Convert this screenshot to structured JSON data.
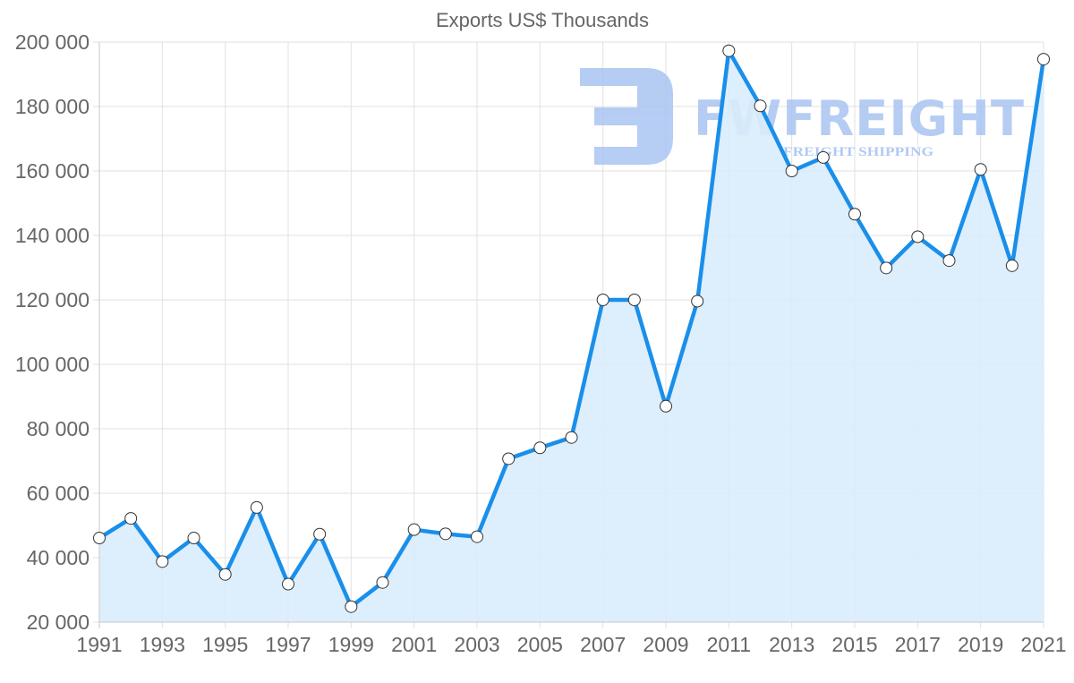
{
  "chart_data": {
    "type": "line",
    "title": "Exports US$ Thousands",
    "xlabel": "",
    "ylabel": "",
    "x": [
      1991,
      1992,
      1993,
      1994,
      1995,
      1996,
      1997,
      1998,
      1999,
      2000,
      2001,
      2002,
      2003,
      2004,
      2005,
      2006,
      2007,
      2008,
      2009,
      2010,
      2011,
      2012,
      2013,
      2014,
      2015,
      2016,
      2017,
      2018,
      2019,
      2020,
      2021
    ],
    "series": [
      {
        "name": "Exports US$ Thousands",
        "values": [
          46100,
          52200,
          38800,
          46100,
          34800,
          55600,
          31800,
          47300,
          24800,
          32300,
          48700,
          47400,
          46500,
          70700,
          74100,
          77300,
          120000,
          120000,
          87000,
          119600,
          197300,
          180200,
          160000,
          164200,
          146600,
          129900,
          139600,
          132200,
          160500,
          130600,
          194700
        ]
      }
    ],
    "xtick_labels": [
      "1991",
      "1993",
      "1995",
      "1997",
      "1999",
      "2001",
      "2003",
      "2005",
      "2007",
      "2009",
      "2011",
      "2013",
      "2015",
      "2017",
      "2019",
      "2021"
    ],
    "ytick_labels": [
      "20 000",
      "40 000",
      "60 000",
      "80 000",
      "100 000",
      "120 000",
      "140 000",
      "160 000",
      "180 000",
      "200 000"
    ],
    "ylim": [
      20000,
      200000
    ],
    "xlim": [
      1991,
      2021
    ],
    "grid": true,
    "legend": "none",
    "fill": "area",
    "colors": {
      "line": "#1a8fea",
      "fill": "#d9ecfc",
      "marker_fill": "#ffffff",
      "marker_stroke": "#333333"
    }
  },
  "watermark": {
    "brand": "FWFREIGHT",
    "tagline": "FREIGHT SHIPPING"
  }
}
